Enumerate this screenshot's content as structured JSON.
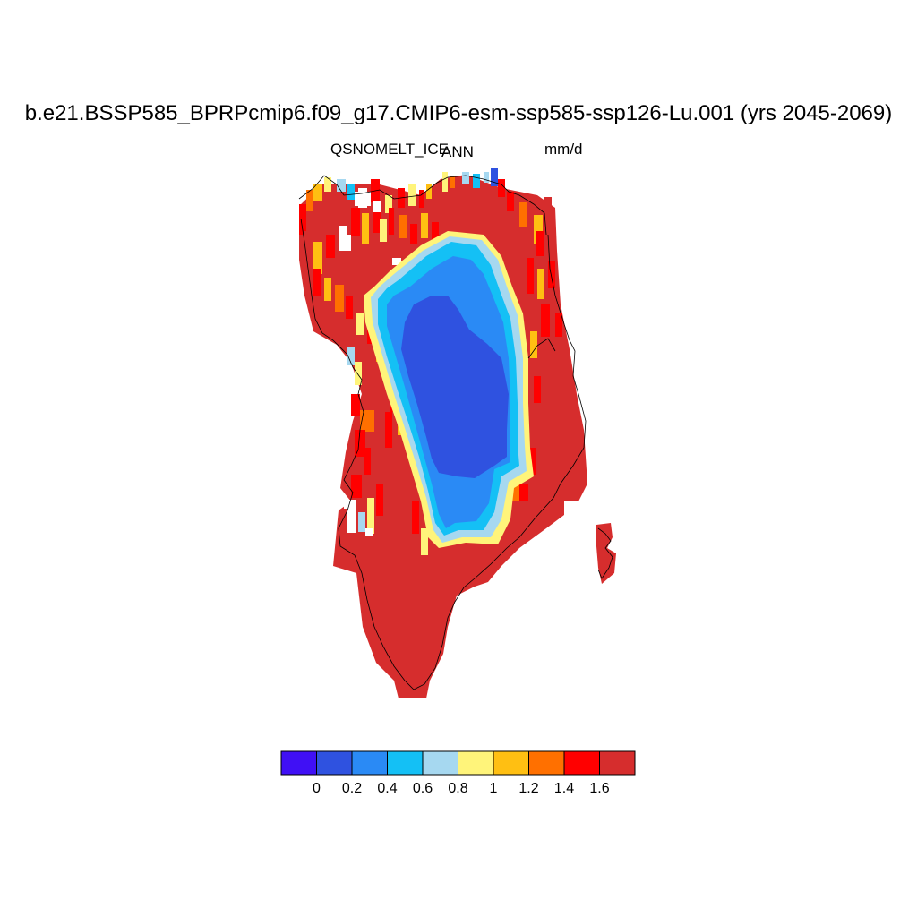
{
  "title": "b.e21.BSSP585_BPRPcmip6.f09_g17.CMIP6-esm-ssp585-ssp126-Lu.001 (yrs 2045-2069)",
  "variable": "QSNOMELT_ICE",
  "season": "ANN",
  "units": "mm/d",
  "colorbar": {
    "colors": [
      "#4010f5",
      "#2f52e0",
      "#2a8af5",
      "#14c0f5",
      "#a6d8f0",
      "#fff47a",
      "#ffbf12",
      "#ff7000",
      "#ff0000",
      "#d62d2d"
    ],
    "labels": [
      "0",
      "0.2",
      "0.4",
      "0.6",
      "0.8",
      "1",
      "1.2",
      "1.4",
      "1.6"
    ]
  },
  "legend_levels": {
    "white": "#ffffff",
    "coast": "#000000"
  }
}
